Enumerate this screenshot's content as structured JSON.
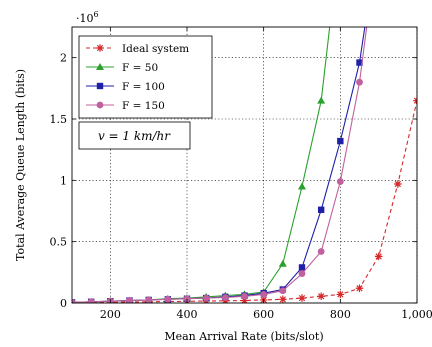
{
  "chart_data": {
    "type": "line",
    "xlabel": "Mean Arrival Rate (bits/slot)",
    "ylabel": "Total Average Queue Length (bits)",
    "y_exponent_label": "·10",
    "y_exponent_power": "6",
    "xlim": [
      100,
      1000
    ],
    "ylim": [
      0,
      2.25
    ],
    "x_ticks": [
      200,
      400,
      600,
      800,
      1000
    ],
    "x_tick_labels": [
      "200",
      "400",
      "600",
      "800",
      "1,000"
    ],
    "y_ticks": [
      0,
      0.5,
      1,
      1.5,
      2
    ],
    "y_tick_labels": [
      "0",
      "0.5",
      "1",
      "1.5",
      "2"
    ],
    "grid": true,
    "legend_position": "top-left",
    "annotation": "v = 1 km/hr",
    "series": [
      {
        "name": "Ideal system",
        "color": "#d62728",
        "marker": "star",
        "dashed": true,
        "x": [
          100,
          150,
          200,
          250,
          300,
          350,
          400,
          450,
          500,
          550,
          600,
          650,
          700,
          750,
          800,
          850,
          900,
          950,
          1000
        ],
        "y": [
          0.002,
          0.004,
          0.006,
          0.008,
          0.01,
          0.012,
          0.014,
          0.016,
          0.018,
          0.02,
          0.025,
          0.03,
          0.04,
          0.055,
          0.07,
          0.12,
          0.38,
          0.97,
          1.65
        ]
      },
      {
        "name": "F = 50",
        "color": "#2ca02c",
        "marker": "triangle",
        "dashed": false,
        "x": [
          100,
          150,
          200,
          250,
          300,
          350,
          400,
          450,
          500,
          550,
          600,
          650,
          700,
          750,
          800
        ],
        "y": [
          0.005,
          0.01,
          0.015,
          0.02,
          0.025,
          0.035,
          0.04,
          0.05,
          0.06,
          0.07,
          0.09,
          0.32,
          0.95,
          1.65,
          3.0
        ]
      },
      {
        "name": "F = 100",
        "color": "#1f1fa8",
        "marker": "square",
        "dashed": false,
        "x": [
          100,
          150,
          200,
          250,
          300,
          350,
          400,
          450,
          500,
          550,
          600,
          650,
          700,
          750,
          800,
          850,
          900
        ],
        "y": [
          0.005,
          0.01,
          0.015,
          0.02,
          0.025,
          0.03,
          0.035,
          0.04,
          0.05,
          0.06,
          0.08,
          0.11,
          0.29,
          0.76,
          1.32,
          1.96,
          3.0
        ]
      },
      {
        "name": "F = 150",
        "color": "#c0609e",
        "marker": "circle",
        "dashed": false,
        "x": [
          100,
          150,
          200,
          250,
          300,
          350,
          400,
          450,
          500,
          550,
          600,
          650,
          700,
          750,
          800,
          850,
          900
        ],
        "y": [
          0.005,
          0.01,
          0.015,
          0.02,
          0.025,
          0.03,
          0.035,
          0.04,
          0.045,
          0.055,
          0.07,
          0.1,
          0.24,
          0.42,
          0.99,
          1.8,
          3.0
        ]
      }
    ]
  }
}
